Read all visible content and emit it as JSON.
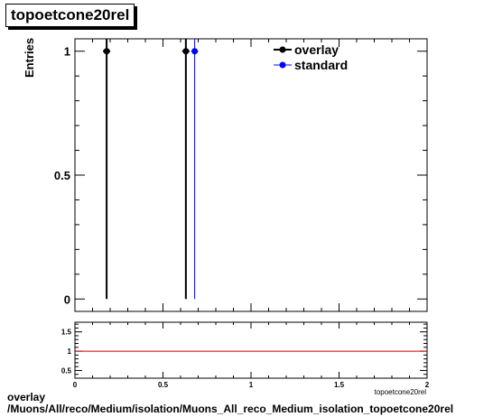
{
  "chart_data": [
    {
      "type": "scatter",
      "title": "topoetcone20rel",
      "xlabel": "",
      "ylabel": "Entries",
      "xlim": [
        0,
        2
      ],
      "ylim": [
        -0.05,
        1.05
      ],
      "y_ticks": [
        "0",
        "0.5",
        "1"
      ],
      "legend_position": "top-right",
      "legend": [
        "overlay",
        "standard"
      ],
      "series": [
        {
          "name": "overlay",
          "color": "#000000",
          "x": [
            0.18,
            0.63
          ],
          "y": [
            1,
            1
          ]
        },
        {
          "name": "standard",
          "color": "#0000ff",
          "x": [
            0.68
          ],
          "y": [
            1
          ]
        }
      ]
    },
    {
      "type": "line",
      "title": "",
      "xlabel": "topoetcone20rel",
      "ylabel": "",
      "xlim": [
        0,
        2
      ],
      "ylim": [
        0.3,
        1.75
      ],
      "x_ticks": [
        "0",
        "0.5",
        "1",
        "1.5",
        "2"
      ],
      "y_ticks": [
        "0.5",
        "1",
        "1.5"
      ],
      "reference_line": {
        "y": 1,
        "color": "#cc0000"
      }
    }
  ],
  "footer": {
    "line1": "overlay",
    "line2": "/Muons/All/reco/Medium/isolation/Muons_All_reco_Medium_isolation_topoetcone20rel"
  }
}
